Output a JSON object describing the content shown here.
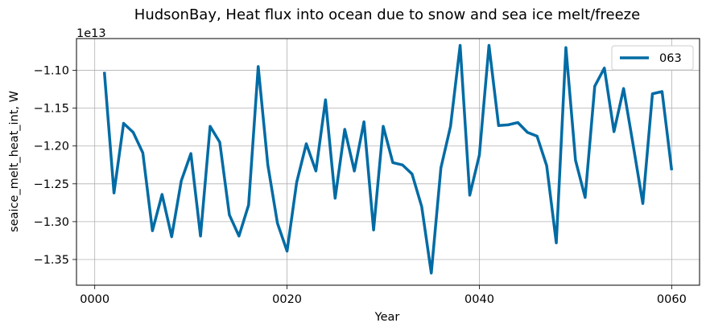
{
  "chart_data": {
    "type": "line",
    "title": "HudsonBay, Heat flux into ocean due to snow and sea ice melt/freeze",
    "xlabel": "Year",
    "ylabel": "seaice_melt_heat_int, W",
    "y_offset_label": "1e13",
    "y_scale_factor": 10000000000000.0,
    "xlim": [
      -1.9,
      62.9
    ],
    "ylim": [
      -1.384,
      -1.058
    ],
    "x_ticks": [
      0,
      20,
      40,
      60
    ],
    "x_tick_labels": [
      "0000",
      "0020",
      "0040",
      "0060"
    ],
    "y_ticks": [
      -1.35,
      -1.3,
      -1.25,
      -1.2,
      -1.15,
      -1.1
    ],
    "y_tick_labels": [
      "−1.35",
      "−1.30",
      "−1.25",
      "−1.20",
      "−1.15",
      "−1.10"
    ],
    "grid": true,
    "legend_position": "top-right",
    "series": [
      {
        "name": "063",
        "color": "#006ba4",
        "x": [
          1,
          2,
          3,
          4,
          5,
          6,
          7,
          8,
          9,
          10,
          11,
          12,
          13,
          14,
          15,
          16,
          17,
          18,
          19,
          20,
          21,
          22,
          23,
          24,
          25,
          26,
          27,
          28,
          29,
          30,
          31,
          32,
          33,
          34,
          35,
          36,
          37,
          38,
          39,
          40,
          41,
          42,
          43,
          44,
          45,
          46,
          47,
          48,
          49,
          50,
          51,
          52,
          53,
          54,
          55,
          56,
          57,
          58,
          59,
          60
        ],
        "y": [
          -1.102,
          -1.262,
          -1.17,
          -1.182,
          -1.209,
          -1.312,
          -1.264,
          -1.32,
          -1.246,
          -1.21,
          -1.319,
          -1.174,
          -1.195,
          -1.291,
          -1.319,
          -1.278,
          -1.095,
          -1.225,
          -1.302,
          -1.339,
          -1.248,
          -1.197,
          -1.233,
          -1.139,
          -1.269,
          -1.178,
          -1.233,
          -1.168,
          -1.311,
          -1.174,
          -1.222,
          -1.225,
          -1.237,
          -1.28,
          -1.368,
          -1.229,
          -1.174,
          -1.067,
          -1.265,
          -1.212,
          -1.067,
          -1.173,
          -1.172,
          -1.169,
          -1.182,
          -1.187,
          -1.226,
          -1.328,
          -1.07,
          -1.219,
          -1.268,
          -1.121,
          -1.097,
          -1.181,
          -1.124,
          -1.199,
          -1.276,
          -1.131,
          -1.128,
          -1.232
        ]
      }
    ]
  }
}
